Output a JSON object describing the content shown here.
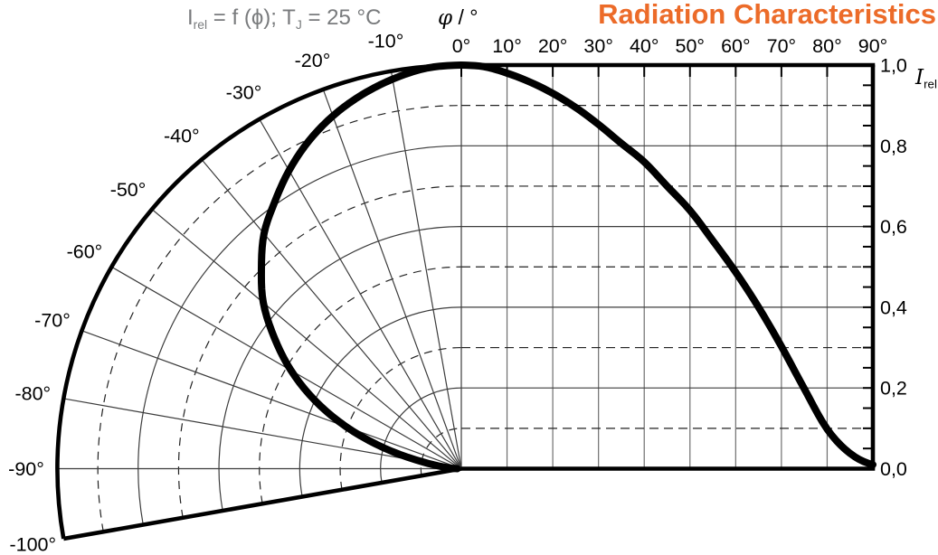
{
  "header": {
    "title": "Radiation Characteristics",
    "title_color": "#EC6B29",
    "condition": {
      "color": "#797b7d",
      "parts": [
        {
          "text": "I"
        },
        {
          "text": "rel",
          "subscript": true
        },
        {
          "text": " = f (ϕ); T"
        },
        {
          "text": "J",
          "subscript": true
        },
        {
          "text": " = 25 °C"
        }
      ]
    },
    "phi_axis_label": {
      "parts": [
        {
          "text": "φ",
          "italic": true,
          "serif": true
        },
        {
          "text": " / °"
        }
      ]
    },
    "irel_axis_label": {
      "parts": [
        {
          "text": "I",
          "italic": true,
          "serif": true
        },
        {
          "text": "rel",
          "subscript": true
        }
      ]
    }
  },
  "axes": {
    "top_ticks": [
      "0°",
      "10°",
      "20°",
      "30°",
      "40°",
      "50°",
      "60°",
      "70°",
      "80°",
      "90°"
    ],
    "right_ticks": [
      "1,0",
      "0,8",
      "0,6",
      "0,4",
      "0,2",
      "0,0"
    ],
    "polar_ticks": [
      "-10°",
      "-20°",
      "-30°",
      "-40°",
      "-50°",
      "-60°",
      "-70°",
      "-80°",
      "-90°",
      "-100°"
    ],
    "tick_label_color": "#000000"
  },
  "chart_data": {
    "type": "line",
    "title": "Radiation Characteristics",
    "xlabel": "φ / °",
    "ylabel": "I_rel",
    "ylim": [
      0.0,
      1.0
    ],
    "cartesian_range_deg": [
      0,
      90
    ],
    "polar_sector_deg": [
      -100,
      0
    ],
    "x_tick_step_deg": 10,
    "y_major_labels": [
      1.0,
      0.8,
      0.6,
      0.4,
      0.2,
      0.0
    ],
    "y_solid_gridlines": [
      0.2,
      0.4,
      0.6,
      0.8
    ],
    "y_dashed_gridlines": [
      0.1,
      0.3,
      0.5,
      0.7,
      0.9
    ],
    "y_minor_tick_step": 0.05,
    "x_deg": [
      0,
      5,
      10,
      15,
      20,
      25,
      30,
      35,
      40,
      45,
      50,
      55,
      60,
      65,
      70,
      75,
      80,
      85,
      90
    ],
    "series": [
      {
        "name": "I_rel = f (φ), T_J = 25 °C",
        "color": "#000000",
        "values": [
          1.0,
          0.996,
          0.98,
          0.958,
          0.93,
          0.895,
          0.853,
          0.806,
          0.76,
          0.7,
          0.64,
          0.565,
          0.487,
          0.4,
          0.303,
          0.198,
          0.098,
          0.038,
          0.01
        ]
      }
    ],
    "note": "Curve is mirrored into the left polar sector for φ in [-90°, 0°]; polar grid ruled to -100°.",
    "grid_color": "#3c3c3c",
    "frame_color": "#000000"
  }
}
